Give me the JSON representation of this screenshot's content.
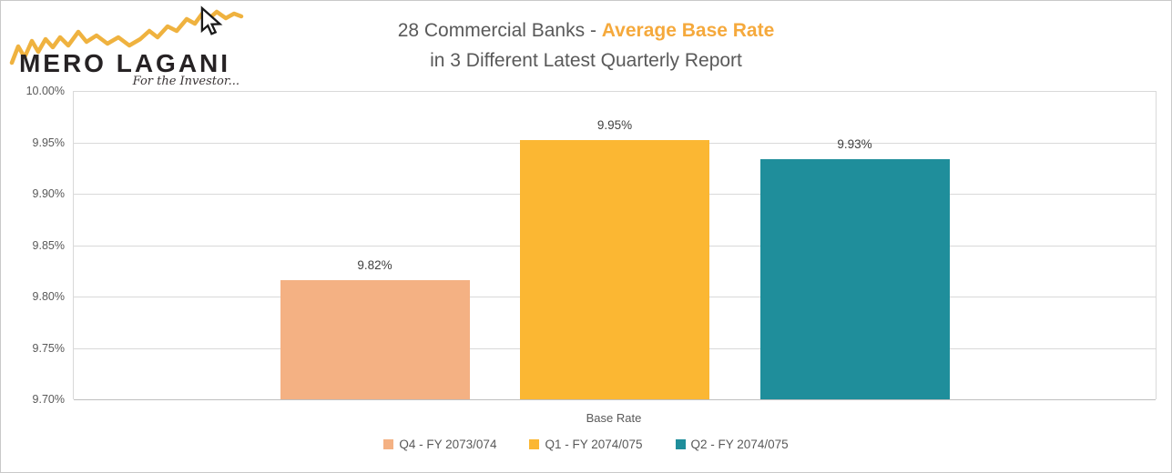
{
  "logo": {
    "name": "MERO LAGANI",
    "tagline": "For the Investor...",
    "line_color": "#EFB23F",
    "text_color": "#262224"
  },
  "title": {
    "prefix": "28 Commercial Banks - ",
    "highlight": "Average Base Rate",
    "line2": "in 3 Different Latest Quarterly Report",
    "text_color": "#595959",
    "highlight_color": "#F5A93C"
  },
  "chart_data": {
    "type": "bar",
    "title": "28 Commercial Banks - Average Base Rate in 3 Different Latest Quarterly Report",
    "categories": [
      "Base Rate"
    ],
    "series": [
      {
        "name": "Q4 - FY 2073/074",
        "values": [
          9.816
        ],
        "label": "9.82%",
        "color": "#F4B183"
      },
      {
        "name": "Q1 - FY 2074/075",
        "values": [
          9.952
        ],
        "label": "9.95%",
        "color": "#FBB733"
      },
      {
        "name": "Q2 - FY 2074/075",
        "values": [
          9.934
        ],
        "label": "9.93%",
        "color": "#1F8E9B"
      }
    ],
    "data_labels": [
      "9.82%",
      "9.95%",
      "9.93%"
    ],
    "xlabel": "Base Rate",
    "ylabel": "",
    "ylim": [
      9.7,
      10.0
    ],
    "ytick_step": 0.05,
    "yticks": [
      "10.00%",
      "9.95%",
      "9.90%",
      "9.85%",
      "9.80%",
      "9.75%",
      "9.70%"
    ],
    "grid": true,
    "legend_position": "bottom",
    "gridline_color": "#D9D9D9",
    "axis_line_color": "#BFBFBF",
    "tick_label_color": "#595959",
    "data_label_color": "#404040"
  }
}
